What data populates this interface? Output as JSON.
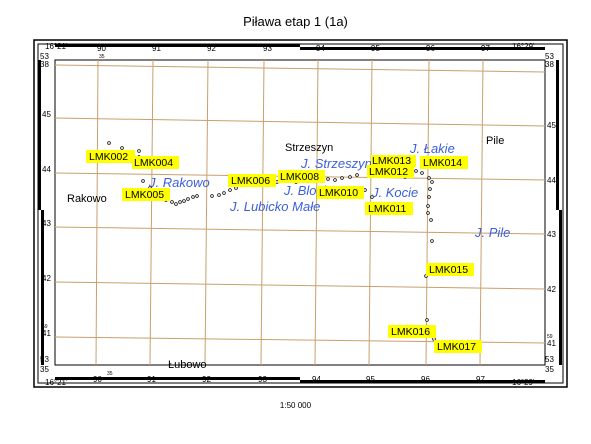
{
  "title": "Piława etap 1 (1a)",
  "scale": "1:50 000",
  "frame": {
    "corner_lon_left": "16°21'",
    "corner_lon_right": "16°29'",
    "corner_lat_top": "53°38'",
    "corner_lat_bottom": "53°35'",
    "corner_lon_left_parts": [
      "16",
      "21"
    ],
    "corner_lon_right_parts": [
      "16",
      "29"
    ],
    "corner_lat_top_parts": [
      "53",
      "38"
    ],
    "corner_lat_bottom_parts": [
      "53",
      "35"
    ],
    "grid_x_labels": [
      "90",
      "91",
      "92",
      "93",
      "94",
      "95",
      "96",
      "97"
    ],
    "grid_x_small": "35",
    "grid_y_labels": [
      "45",
      "44",
      "43",
      "42",
      "41"
    ],
    "grid_y_small": "59"
  },
  "places": [
    {
      "name": "Strzeszyn",
      "kind": "town"
    },
    {
      "name": "Rakowo",
      "kind": "town"
    },
    {
      "name": "Pile",
      "kind": "town"
    },
    {
      "name": "Łubowo",
      "kind": "town"
    }
  ],
  "lakes": [
    {
      "name": "J. Łakie"
    },
    {
      "name": "J. Strzeszyn"
    },
    {
      "name": "J. Rakowo"
    },
    {
      "name": "J. Bloch"
    },
    {
      "name": "J. Kocie"
    },
    {
      "name": "J. Lubicko Małe"
    },
    {
      "name": "J. Pile"
    }
  ],
  "stations": [
    {
      "id": "LMK002"
    },
    {
      "id": "LMK004"
    },
    {
      "id": "LMK005"
    },
    {
      "id": "LMK006"
    },
    {
      "id": "LMK008"
    },
    {
      "id": "LMK010"
    },
    {
      "id": "LMK011"
    },
    {
      "id": "LMK012"
    },
    {
      "id": "LMK013"
    },
    {
      "id": "LMK014"
    },
    {
      "id": "LMK015"
    },
    {
      "id": "LMK016"
    },
    {
      "id": "LMK017"
    }
  ],
  "colors": {
    "grid": "#c9a06a",
    "lake_label": "#3b5fd9",
    "station_label_bg": "#ffff00",
    "frame": "#000000"
  }
}
